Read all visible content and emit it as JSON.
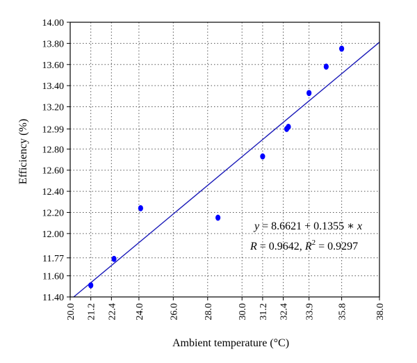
{
  "chart_data": {
    "type": "scatter",
    "xlabel": "Ambient temperature (°C)",
    "ylabel": "Efficiency (%)",
    "xlim": [
      20.0,
      38.0
    ],
    "ylim": [
      11.4,
      14.0
    ],
    "x_ticks": [
      20.0,
      21.2,
      22.4,
      24.0,
      26.0,
      28.0,
      30.0,
      31.2,
      32.4,
      33.9,
      35.8,
      38.0
    ],
    "x_tick_labels": [
      "20.0",
      "21.2",
      "22.4",
      "24.0",
      "26.0",
      "28.0",
      "30.0",
      "31.2",
      "32.4",
      "33.9",
      "35.8",
      "38.0"
    ],
    "y_ticks": [
      11.4,
      11.6,
      11.77,
      12.0,
      12.2,
      12.4,
      12.6,
      12.8,
      12.99,
      13.2,
      13.4,
      13.6,
      13.8,
      14.0
    ],
    "y_tick_labels": [
      "11.40",
      "11.60",
      "11.77",
      "12.00",
      "12.20",
      "12.40",
      "12.60",
      "12.80",
      "12.99",
      "13.20",
      "13.40",
      "13.60",
      "13.80",
      "14.00"
    ],
    "grid": true,
    "points": [
      {
        "x": 21.2,
        "y": 11.51
      },
      {
        "x": 22.55,
        "y": 11.76
      },
      {
        "x": 24.1,
        "y": 12.24
      },
      {
        "x": 28.6,
        "y": 12.15
      },
      {
        "x": 31.2,
        "y": 12.73
      },
      {
        "x": 32.6,
        "y": 12.99
      },
      {
        "x": 32.7,
        "y": 13.01
      },
      {
        "x": 33.9,
        "y": 13.33
      },
      {
        "x": 34.9,
        "y": 13.58
      },
      {
        "x": 35.8,
        "y": 13.75
      }
    ],
    "point_color": "#0000ff",
    "fit_line": {
      "intercept": 8.6621,
      "slope": 0.1355,
      "color": "#1a1ab8"
    },
    "annotation": {
      "equation_y": "y",
      "equation_eq": " = 8.6621 + 0.1355 ∗ ",
      "equation_x": "x",
      "stats_r": "R",
      "stats_r_val": " = 0.9642, ",
      "stats_r2": "R",
      "stats_r2_sup": "2",
      "stats_r2_val": " = 0.9297"
    }
  }
}
